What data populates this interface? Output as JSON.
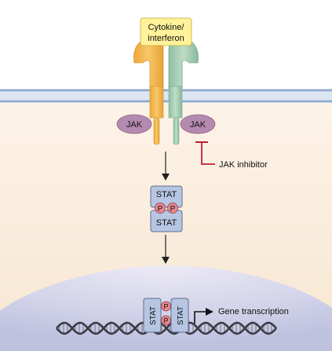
{
  "ligand": {
    "line1": "Cytokine/",
    "line2": "interferon"
  },
  "kinases": {
    "left": "JAK",
    "right": "JAK"
  },
  "inhibitor": {
    "label": "JAK inhibitor"
  },
  "stat_dimer": {
    "top": "STAT",
    "bottom": "STAT",
    "phospho": "P"
  },
  "nuclear_dimer": {
    "left": "STAT",
    "right": "STAT",
    "phospho": "P"
  },
  "transcription": {
    "label": "Gene transcription"
  },
  "colors": {
    "cytoplasm": "#fbefe2",
    "membrane": "#9db3d3",
    "nucleus": "#cfd2e8",
    "ligand": "#fff29a",
    "receptor_left": "#f2b64b",
    "receptor_right": "#a6cdb3",
    "jak": "#b48ab0",
    "stat": "#b6c6e2",
    "phospho": "#e78a90",
    "inhibitor": "#c01b36"
  }
}
